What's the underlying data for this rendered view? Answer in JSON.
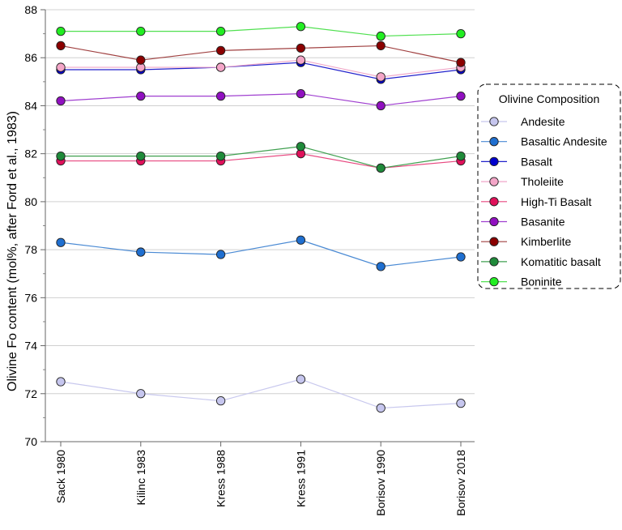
{
  "chart_data": {
    "type": "line",
    "categories": [
      "Sack 1980",
      "Kilinc 1983",
      "Kress 1988",
      "Kress 1991",
      "Borisov 1990",
      "Borisov 2018"
    ],
    "ylabel": "Olivine Fo content  (mol%, after Ford et al., 1983)",
    "ylim": [
      70,
      88
    ],
    "yticks": [
      70,
      72,
      74,
      76,
      78,
      80,
      82,
      84,
      86,
      88
    ],
    "grid": "horizontal",
    "legend": {
      "title": "Olivine Composition",
      "placement": "right"
    },
    "series": [
      {
        "name": "Andesite",
        "line_color": "#c8c8ee",
        "marker_color": "#c6c6ee",
        "values": [
          72.5,
          72.0,
          71.7,
          72.6,
          71.4,
          71.6
        ]
      },
      {
        "name": "Basaltic Andesite",
        "line_color": "#4a8ad4",
        "marker_color": "#1f6fd0",
        "values": [
          78.3,
          77.9,
          77.8,
          78.4,
          77.3,
          77.7
        ]
      },
      {
        "name": "Basalt",
        "line_color": "#2222cc",
        "marker_color": "#0000cc",
        "values": [
          85.5,
          85.5,
          85.6,
          85.8,
          85.1,
          85.5
        ]
      },
      {
        "name": "Tholeiite",
        "line_color": "#f0a6c8",
        "marker_color": "#f4a6c8",
        "values": [
          85.6,
          85.6,
          85.6,
          85.9,
          85.2,
          85.6
        ]
      },
      {
        "name": "High-Ti Basalt",
        "line_color": "#e84880",
        "marker_color": "#e0105a",
        "values": [
          81.7,
          81.7,
          81.7,
          82.0,
          81.4,
          81.7
        ]
      },
      {
        "name": "Basanite",
        "line_color": "#a040d0",
        "marker_color": "#9010c0",
        "values": [
          84.2,
          84.4,
          84.4,
          84.5,
          84.0,
          84.4
        ]
      },
      {
        "name": "Kimberlite",
        "line_color": "#a04040",
        "marker_color": "#8b0000",
        "values": [
          86.5,
          85.9,
          86.3,
          86.4,
          86.5,
          85.8
        ]
      },
      {
        "name": "Komatitic basalt",
        "line_color": "#40a050",
        "marker_color": "#1f8a3a",
        "values": [
          81.9,
          81.9,
          81.9,
          82.3,
          81.4,
          81.9
        ]
      },
      {
        "name": "Boninite",
        "line_color": "#50e050",
        "marker_color": "#22ee22",
        "values": [
          87.1,
          87.1,
          87.1,
          87.3,
          86.9,
          87.0
        ]
      }
    ]
  }
}
